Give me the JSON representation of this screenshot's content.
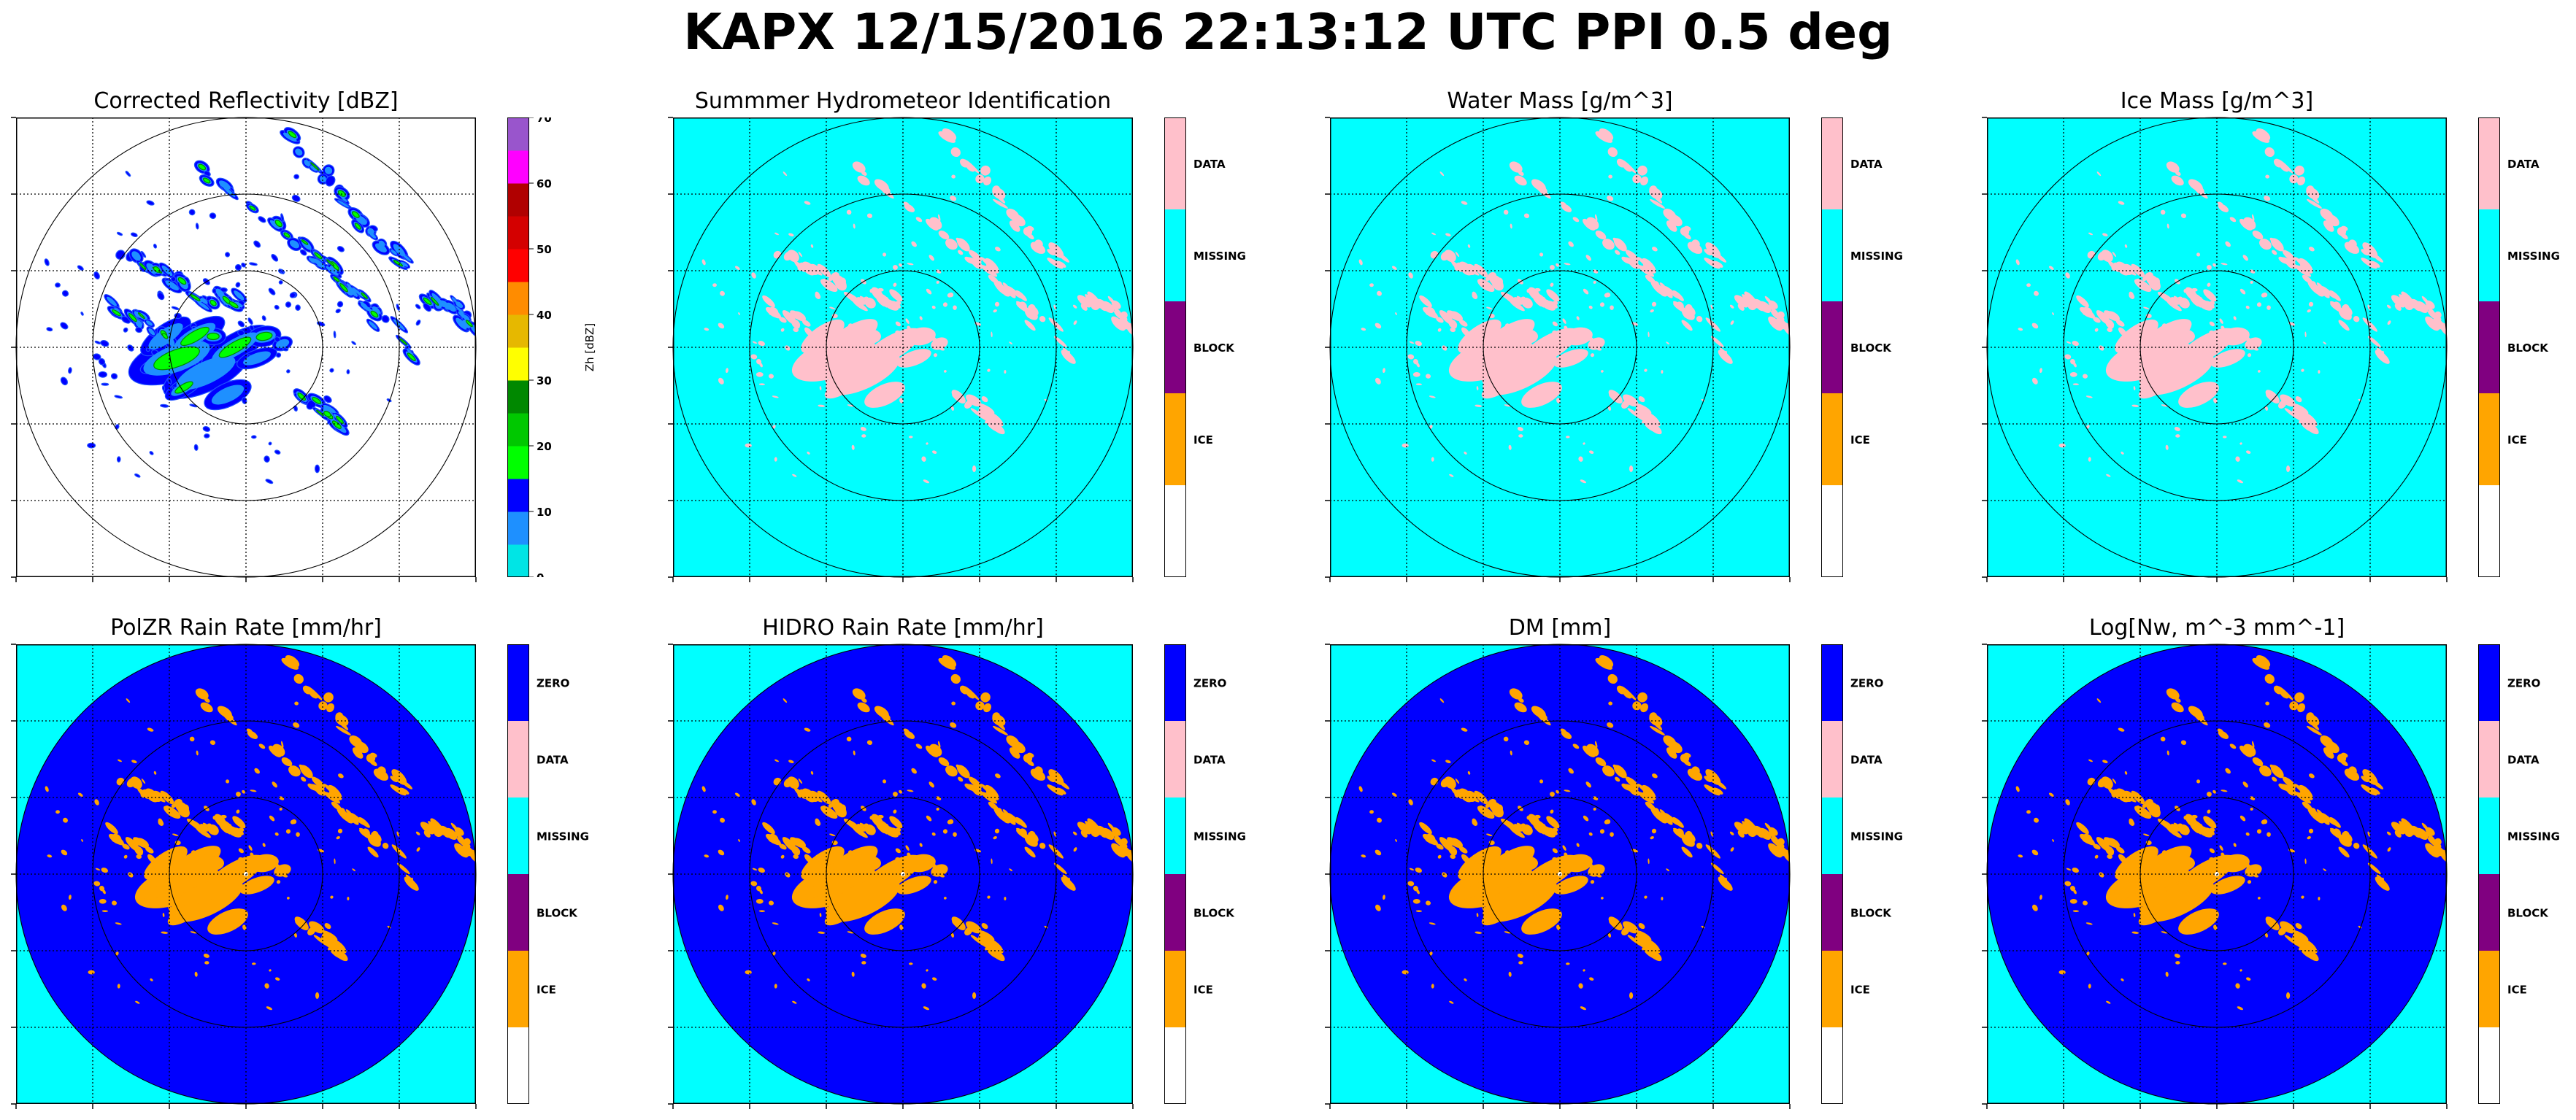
{
  "suptitle": "KAPX 12/15/2016 22:13:12 UTC PPI 0.5 deg",
  "colors": {
    "cyan": "#00ffff",
    "blue": "#0000ff",
    "pink": "#ffc0cb",
    "orange": "#ffa500",
    "purple": "#800080",
    "white": "#ffffff"
  },
  "chart_data": [
    {
      "type": "heatmap",
      "title": "Corrected Reflectivity [dBZ]",
      "field": "reflectivity",
      "colorbar": {
        "kind": "continuous",
        "label": "Zh [dBZ]",
        "ticks": [
          0,
          10,
          20,
          30,
          40,
          50,
          60,
          70
        ],
        "range": [
          0,
          70
        ],
        "step": 5,
        "colors": [
          "#00e5e5",
          "#1e90ff",
          "#0000ff",
          "#00ff00",
          "#00c800",
          "#008800",
          "#ffff00",
          "#e6b800",
          "#ff8c00",
          "#ff0000",
          "#d40000",
          "#b00000",
          "#ff00ff",
          "#9955cc"
        ]
      },
      "range_rings": 3,
      "grid": true
    },
    {
      "type": "heatmap",
      "title": "Summmer Hydrometeor Identification",
      "field": "categorical",
      "background": "#00ffff",
      "echo_color": "#ffc0cb",
      "colorbar": {
        "kind": "categorical",
        "categories": [
          "DATA",
          "MISSING",
          "BLOCK",
          "ICE",
          ""
        ],
        "colors": [
          "#ffc0cb",
          "#00ffff",
          "#800080",
          "#ffa500",
          "#ffffff"
        ]
      },
      "range_rings": 3,
      "grid": true
    },
    {
      "type": "heatmap",
      "title": "Water Mass [g/m^3]",
      "field": "categorical",
      "background": "#00ffff",
      "echo_color": "#ffc0cb",
      "colorbar": {
        "kind": "categorical",
        "categories": [
          "DATA",
          "MISSING",
          "BLOCK",
          "ICE",
          ""
        ],
        "colors": [
          "#ffc0cb",
          "#00ffff",
          "#800080",
          "#ffa500",
          "#ffffff"
        ]
      },
      "range_rings": 3,
      "grid": true
    },
    {
      "type": "heatmap",
      "title": "Ice Mass [g/m^3]",
      "field": "categorical",
      "background": "#00ffff",
      "echo_color": "#ffc0cb",
      "colorbar": {
        "kind": "categorical",
        "categories": [
          "DATA",
          "MISSING",
          "BLOCK",
          "ICE",
          ""
        ],
        "colors": [
          "#ffc0cb",
          "#00ffff",
          "#800080",
          "#ffa500",
          "#ffffff"
        ]
      },
      "range_rings": 3,
      "grid": true
    },
    {
      "type": "heatmap",
      "title": "PolZR Rain Rate [mm/hr]",
      "field": "categorical",
      "background": "#00ffff",
      "disc_color": "#0000ff",
      "echo_color": "#ffa500",
      "colorbar": {
        "kind": "categorical",
        "categories": [
          "ZERO",
          "DATA",
          "MISSING",
          "BLOCK",
          "ICE",
          ""
        ],
        "colors": [
          "#0000ff",
          "#ffc0cb",
          "#00ffff",
          "#800080",
          "#ffa500",
          "#ffffff"
        ]
      },
      "range_rings": 3,
      "grid": true
    },
    {
      "type": "heatmap",
      "title": "HIDRO Rain Rate [mm/hr]",
      "field": "categorical",
      "background": "#00ffff",
      "disc_color": "#0000ff",
      "echo_color": "#ffa500",
      "colorbar": {
        "kind": "categorical",
        "categories": [
          "ZERO",
          "DATA",
          "MISSING",
          "BLOCK",
          "ICE",
          ""
        ],
        "colors": [
          "#0000ff",
          "#ffc0cb",
          "#00ffff",
          "#800080",
          "#ffa500",
          "#ffffff"
        ]
      },
      "range_rings": 3,
      "grid": true
    },
    {
      "type": "heatmap",
      "title": "DM [mm]",
      "field": "categorical",
      "background": "#00ffff",
      "disc_color": "#0000ff",
      "echo_color": "#ffa500",
      "colorbar": {
        "kind": "categorical",
        "categories": [
          "ZERO",
          "DATA",
          "MISSING",
          "BLOCK",
          "ICE",
          ""
        ],
        "colors": [
          "#0000ff",
          "#ffc0cb",
          "#00ffff",
          "#800080",
          "#ffa500",
          "#ffffff"
        ]
      },
      "range_rings": 3,
      "grid": true
    },
    {
      "type": "heatmap",
      "title": "Log[Nw, m^-3 mm^-1]",
      "field": "categorical",
      "background": "#00ffff",
      "disc_color": "#0000ff",
      "echo_color": "#ffa500",
      "colorbar": {
        "kind": "categorical",
        "categories": [
          "ZERO",
          "DATA",
          "MISSING",
          "BLOCK",
          "ICE",
          ""
        ],
        "colors": [
          "#0000ff",
          "#ffc0cb",
          "#00ffff",
          "#800080",
          "#ffa500",
          "#ffffff"
        ]
      },
      "range_rings": 3,
      "grid": true
    }
  ]
}
